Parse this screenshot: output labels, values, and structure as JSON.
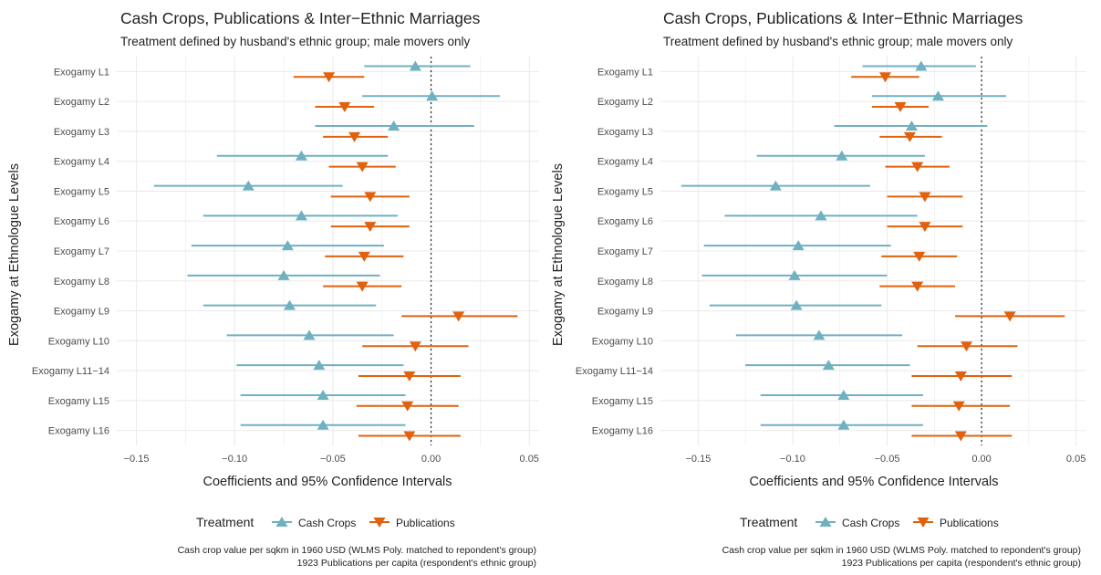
{
  "colors": {
    "cash_crops": "#6fb1c1",
    "publications": "#e0620e",
    "grid": "#ebebeb",
    "text": "#222222",
    "axis_text": "#4d4d4d"
  },
  "legend": {
    "title": "Treatment",
    "items": [
      "Cash Crops",
      "Publications"
    ]
  },
  "chart_data": [
    {
      "type": "errorbar",
      "title": "Cash Crops, Publications & Inter−Ethnic Marriages",
      "subtitle": "Treatment defined by husband's ethnic group; male movers only",
      "xlabel": "Coefficients and 95% Confidence Intervals",
      "ylabel": "Exogamy at Ethnologue Levels",
      "xlim": [
        -0.16,
        0.055
      ],
      "xticks": [
        -0.15,
        -0.1,
        -0.05,
        0.0,
        0.05
      ],
      "xtick_labels": [
        "−0.15",
        "−0.10",
        "−0.05",
        "0.00",
        "0.05"
      ],
      "reference_line": 0,
      "caption": [
        "Cash crop value per sqkm in 1960 USD (WLMS Poly. matched to repondent's group)",
        "1923 Publications per capita (respondent's ethnic group)"
      ],
      "categories": [
        "Exogamy L1",
        "Exogamy L2",
        "Exogamy L3",
        "Exogamy L4",
        "Exogamy L5",
        "Exogamy L6",
        "Exogamy L7",
        "Exogamy L8",
        "Exogamy L9",
        "Exogamy L10",
        "Exogamy L11−14",
        "Exogamy L15",
        "Exogamy L16"
      ],
      "series": [
        {
          "name": "Cash Crops",
          "estimate": [
            -0.008,
            0.0005,
            -0.019,
            -0.066,
            -0.093,
            -0.066,
            -0.073,
            -0.075,
            -0.072,
            -0.062,
            -0.057,
            -0.055,
            -0.055
          ],
          "lower": [
            -0.034,
            -0.035,
            -0.059,
            -0.109,
            -0.141,
            -0.116,
            -0.122,
            -0.124,
            -0.116,
            -0.104,
            -0.099,
            -0.097,
            -0.097
          ],
          "upper": [
            0.02,
            0.035,
            0.022,
            -0.022,
            -0.045,
            -0.017,
            -0.024,
            -0.026,
            -0.028,
            -0.019,
            -0.014,
            -0.013,
            -0.013
          ]
        },
        {
          "name": "Publications",
          "estimate": [
            -0.052,
            -0.044,
            -0.039,
            -0.035,
            -0.031,
            -0.031,
            -0.034,
            -0.035,
            0.014,
            -0.008,
            -0.011,
            -0.012,
            -0.011
          ],
          "lower": [
            -0.07,
            -0.059,
            -0.055,
            -0.052,
            -0.051,
            -0.051,
            -0.054,
            -0.055,
            -0.015,
            -0.035,
            -0.037,
            -0.038,
            -0.037
          ],
          "upper": [
            -0.034,
            -0.029,
            -0.022,
            -0.018,
            -0.011,
            -0.011,
            -0.014,
            -0.015,
            0.044,
            0.019,
            0.015,
            0.014,
            0.015
          ]
        }
      ]
    },
    {
      "type": "errorbar",
      "title": "Cash Crops, Publications & Inter−Ethnic Marriages",
      "subtitle": "Treatment defined by husband's ethnic group; male movers only",
      "xlabel": "Coefficients and 95% Confidence Intervals",
      "ylabel": "Exogamy at Ethnologue Levels",
      "xlim": [
        -0.17,
        0.055
      ],
      "xticks": [
        -0.15,
        -0.1,
        -0.05,
        0.0,
        0.05
      ],
      "xtick_labels": [
        "−0.15",
        "−0.10",
        "−0.05",
        "0.00",
        "0.05"
      ],
      "reference_line": 0,
      "caption": [
        "Cash crop value per sqkm in 1960 USD (WLMS Poly. matched to repondent's group)",
        "1923 Publications per capita (respondent's ethnic group)"
      ],
      "categories": [
        "Exogamy L1",
        "Exogamy L2",
        "Exogamy L3",
        "Exogamy L4",
        "Exogamy L5",
        "Exogamy L6",
        "Exogamy L7",
        "Exogamy L8",
        "Exogamy L9",
        "Exogamy L10",
        "Exogamy L11−14",
        "Exogamy L15",
        "Exogamy L16"
      ],
      "series": [
        {
          "name": "Cash Crops",
          "estimate": [
            -0.032,
            -0.023,
            -0.037,
            -0.074,
            -0.109,
            -0.085,
            -0.097,
            -0.099,
            -0.098,
            -0.086,
            -0.081,
            -0.073,
            -0.073
          ],
          "lower": [
            -0.063,
            -0.058,
            -0.078,
            -0.119,
            -0.159,
            -0.136,
            -0.147,
            -0.148,
            -0.144,
            -0.13,
            -0.125,
            -0.117,
            -0.117
          ],
          "upper": [
            -0.003,
            0.013,
            0.003,
            -0.03,
            -0.059,
            -0.034,
            -0.048,
            -0.05,
            -0.053,
            -0.042,
            -0.038,
            -0.031,
            -0.031
          ]
        },
        {
          "name": "Publications",
          "estimate": [
            -0.051,
            -0.043,
            -0.038,
            -0.034,
            -0.03,
            -0.03,
            -0.033,
            -0.034,
            0.015,
            -0.008,
            -0.011,
            -0.012,
            -0.011
          ],
          "lower": [
            -0.069,
            -0.058,
            -0.054,
            -0.051,
            -0.05,
            -0.05,
            -0.053,
            -0.054,
            -0.014,
            -0.034,
            -0.037,
            -0.037,
            -0.037
          ],
          "upper": [
            -0.033,
            -0.028,
            -0.021,
            -0.017,
            -0.01,
            -0.01,
            -0.013,
            -0.014,
            0.044,
            0.019,
            0.016,
            0.015,
            0.016
          ]
        }
      ]
    }
  ]
}
